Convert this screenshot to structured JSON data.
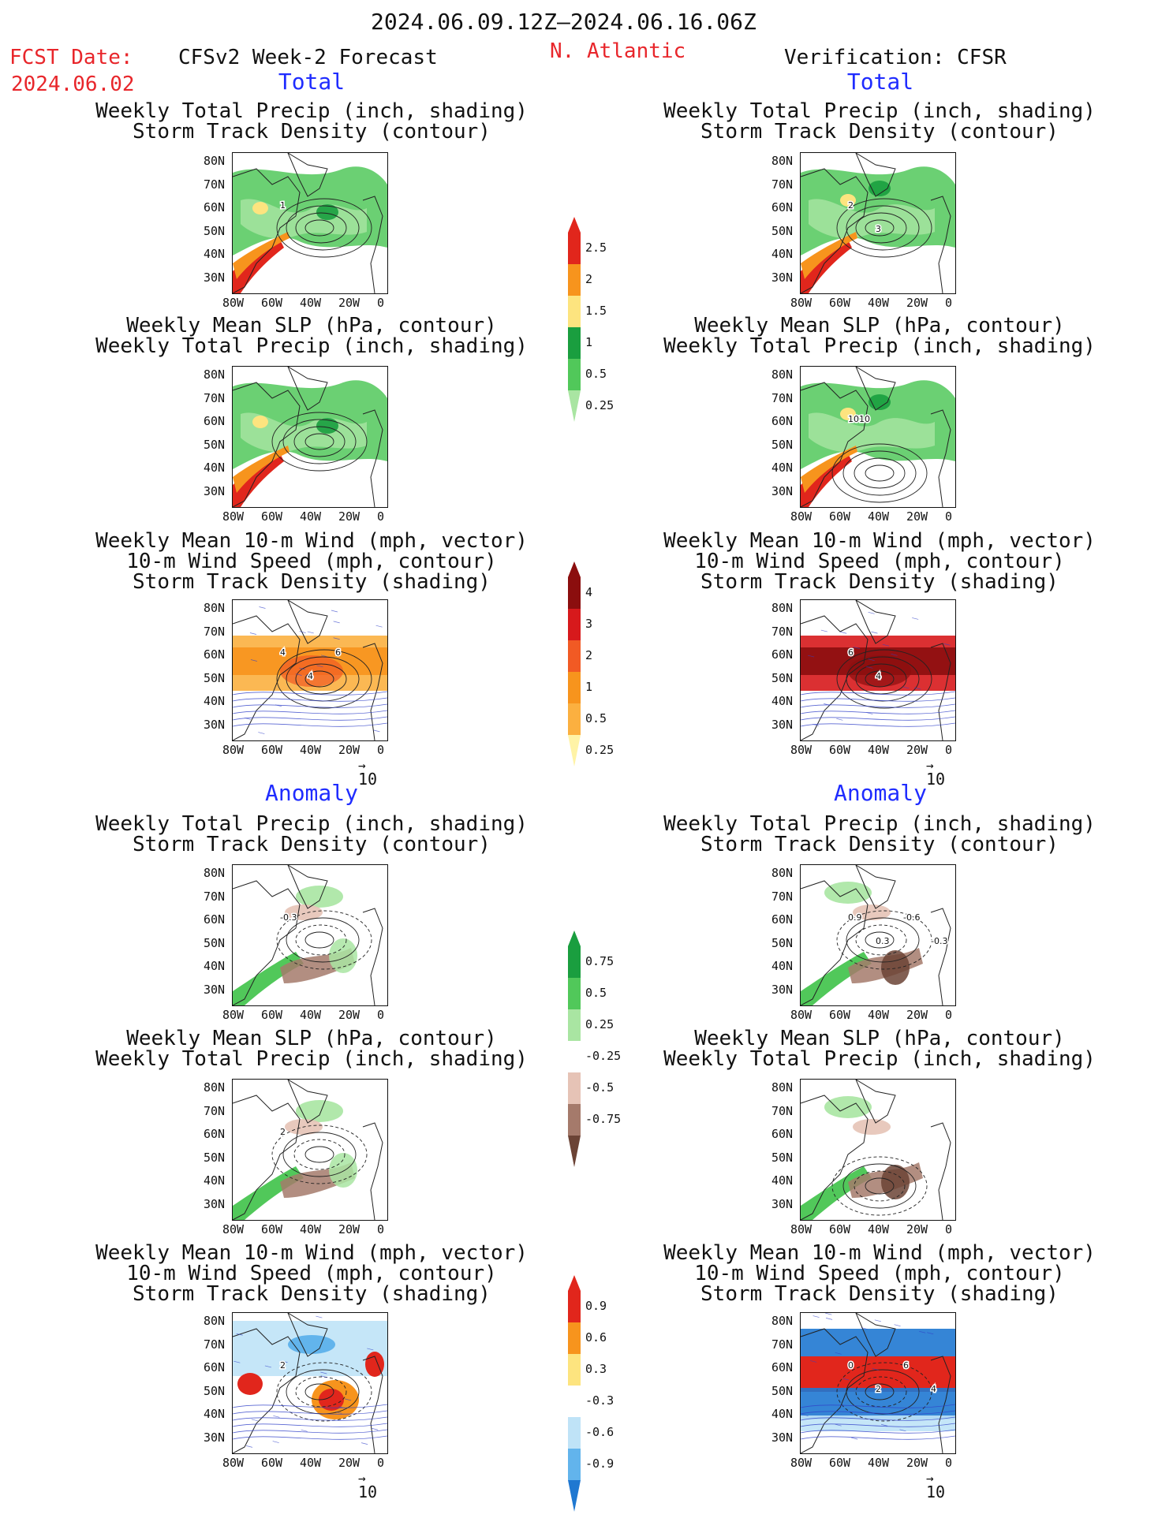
{
  "header": {
    "date_range": "2024.06.09.12Z–2024.06.16.06Z",
    "fcst_label": "FCST Date:",
    "fcst_date": "2024.06.02",
    "forecast_title": "CFSv2 Week-2 Forecast",
    "region": "N. Atlantic",
    "verification_title": "Verification: CFSR"
  },
  "sections": {
    "total": "Total",
    "anomaly": "Anomaly"
  },
  "panel_titles": {
    "precip_storm": [
      "Weekly Total Precip (inch, shading)",
      "Storm Track Density (contour)"
    ],
    "slp_precip": [
      "Weekly Mean SLP (hPa, contour)",
      "Weekly Total Precip (inch, shading)"
    ],
    "wind_storm": [
      "Weekly Mean 10-m Wind (mph, vector)",
      "10-m Wind Speed (mph, contour)",
      "Storm Track Density (shading)"
    ]
  },
  "axes": {
    "lat_ticks": [
      "80N",
      "70N",
      "60N",
      "50N",
      "40N",
      "30N"
    ],
    "lon_ticks": [
      "80W",
      "60W",
      "40W",
      "20W",
      "0"
    ]
  },
  "vector_ref": "10",
  "colorbars": {
    "total_precip": {
      "labels": [
        "2.5",
        "2",
        "1.5",
        "1",
        "0.5",
        "0.25"
      ],
      "colors": [
        "#e1261c",
        "#f7941d",
        "#fde47f",
        "#1a9e3f",
        "#51c85a",
        "#a9e5a2"
      ]
    },
    "total_storm": {
      "labels": [
        "4",
        "3",
        "2",
        "1",
        "0.5",
        "0.25"
      ],
      "colors": [
        "#8b0e0e",
        "#d7191c",
        "#f15a24",
        "#f7941d",
        "#fbb040",
        "#fff3a6"
      ]
    },
    "anom_precip": {
      "labels": [
        "0.75",
        "0.5",
        "0.25",
        "-0.25",
        "-0.5",
        "-0.75"
      ],
      "colors": [
        "#1a9e3f",
        "#51c85a",
        "#a9e5a2",
        "#ffffff",
        "#e6c3b6",
        "#a57a6b",
        "#6b4335"
      ]
    },
    "anom_storm": {
      "labels": [
        "0.9",
        "0.6",
        "0.3",
        "-0.3",
        "-0.6",
        "-0.9"
      ],
      "colors": [
        "#e1261c",
        "#f7941d",
        "#fde47f",
        "#ffffff",
        "#bfe3f7",
        "#62b4ec",
        "#1f78d1"
      ]
    }
  },
  "contour_labels": {
    "fc_total_precip": [
      "1"
    ],
    "vr_total_precip": [
      "2",
      "3"
    ],
    "vr_total_slp": [
      "1010"
    ],
    "fc_total_wind": [
      "4",
      "4",
      "6"
    ],
    "vr_total_wind": [
      "6",
      "4"
    ],
    "fc_anom_precip": [
      "-0.3"
    ],
    "vr_anom_precip": [
      "0.9",
      "0.3",
      "-0.6",
      "-0.3"
    ],
    "fc_anom_slp": [
      "2"
    ],
    "fc_anom_wind": [
      "2"
    ],
    "vr_anom_wind": [
      "0",
      "2",
      "6",
      "4"
    ]
  }
}
